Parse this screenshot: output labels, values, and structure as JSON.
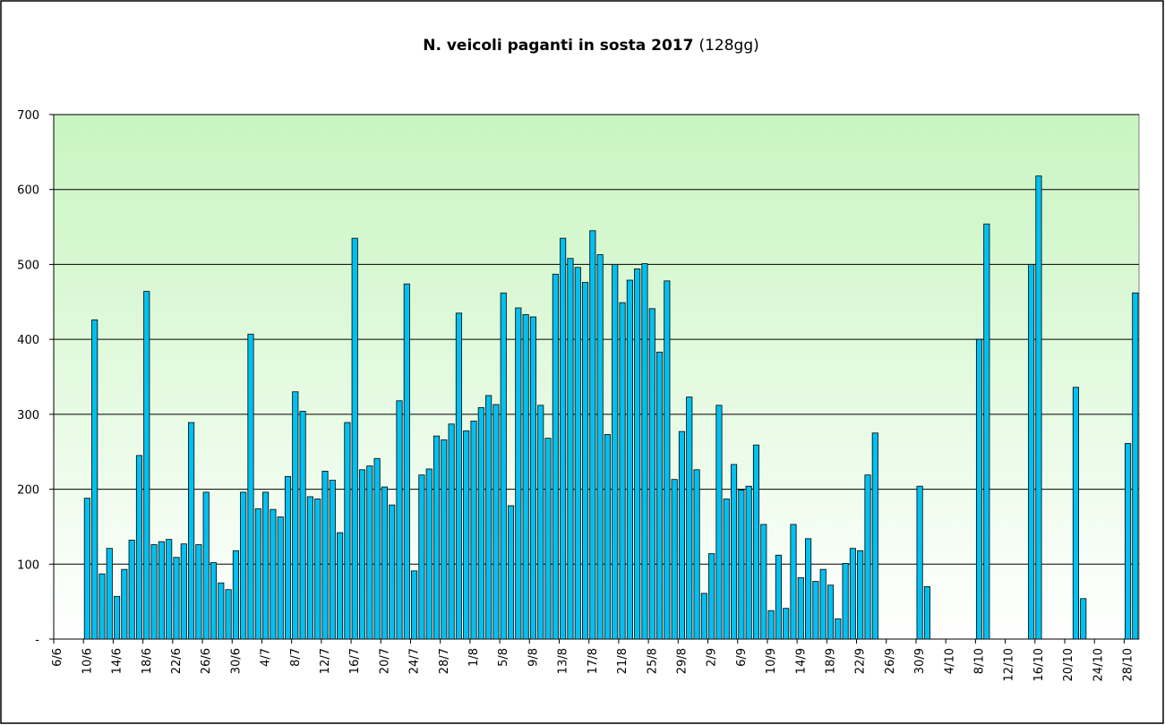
{
  "chart_data": {
    "type": "bar",
    "title": "N. veicoli paganti in sosta 2017",
    "subtitle": "(128gg)",
    "categories": [
      "6/6",
      null,
      null,
      null,
      "10/6",
      null,
      null,
      null,
      "14/6",
      null,
      null,
      null,
      "18/6",
      null,
      null,
      null,
      "22/6",
      null,
      null,
      null,
      "26/6",
      null,
      null,
      null,
      "30/6",
      null,
      null,
      null,
      "4/7",
      null,
      null,
      null,
      "8/7",
      null,
      null,
      null,
      "12/7",
      null,
      null,
      null,
      "16/7",
      null,
      null,
      null,
      "20/7",
      null,
      null,
      null,
      "24/7",
      null,
      null,
      null,
      "28/7",
      null,
      null,
      null,
      "1/8",
      null,
      null,
      null,
      "5/8",
      null,
      null,
      null,
      "9/8",
      null,
      null,
      null,
      "13/8",
      null,
      null,
      null,
      "17/8",
      null,
      null,
      null,
      "21/8",
      null,
      null,
      null,
      "25/8",
      null,
      null,
      null,
      "29/8",
      null,
      null,
      null,
      "2/9",
      null,
      null,
      null,
      "6/9",
      null,
      null,
      null,
      "10/9",
      null,
      null,
      null,
      "14/9",
      null,
      null,
      null,
      "18/9",
      null,
      null,
      null,
      "22/9",
      null,
      null,
      null,
      "26/9",
      null,
      null,
      null,
      "30/9",
      null,
      null,
      null,
      "4/10",
      null,
      null,
      null,
      "8/10",
      null,
      null,
      null,
      "12/10",
      null,
      null,
      null,
      "16/10",
      null,
      null,
      null,
      "20/10",
      null,
      null,
      null,
      "24/10",
      null,
      null,
      null,
      "28/10",
      null
    ],
    "values": [
      null,
      null,
      null,
      null,
      188,
      426,
      87,
      121,
      57,
      93,
      132,
      245,
      464,
      126,
      130,
      133,
      109,
      127,
      289,
      126,
      196,
      102,
      75,
      66,
      118,
      196,
      407,
      174,
      196,
      173,
      163,
      217,
      330,
      304,
      190,
      187,
      224,
      212,
      142,
      289,
      535,
      226,
      231,
      241,
      203,
      179,
      318,
      474,
      91,
      219,
      227,
      271,
      266,
      287,
      435,
      278,
      291,
      309,
      325,
      313,
      462,
      178,
      442,
      433,
      430,
      312,
      268,
      487,
      535,
      508,
      496,
      476,
      545,
      513,
      273,
      500,
      449,
      479,
      494,
      501,
      441,
      383,
      478,
      213,
      277,
      323,
      226,
      61,
      114,
      312,
      187,
      233,
      199,
      204,
      259,
      153,
      38,
      112,
      41,
      153,
      82,
      134,
      77,
      93,
      72,
      27,
      101,
      121,
      118,
      219,
      275,
      null,
      null,
      null,
      null,
      null,
      204,
      70,
      null,
      null,
      null,
      null,
      null,
      null,
      400,
      554,
      null,
      null,
      null,
      null,
      null,
      500,
      618,
      null,
      null,
      null,
      null,
      336,
      54,
      null,
      null,
      null,
      null,
      null,
      261,
      462
    ],
    "color": "#00c0f0",
    "ylim": [
      0,
      700
    ],
    "yticks": [
      {
        "value": 0,
        "label": "-"
      },
      100,
      200,
      300,
      400,
      500,
      600,
      700
    ],
    "grid": true
  }
}
